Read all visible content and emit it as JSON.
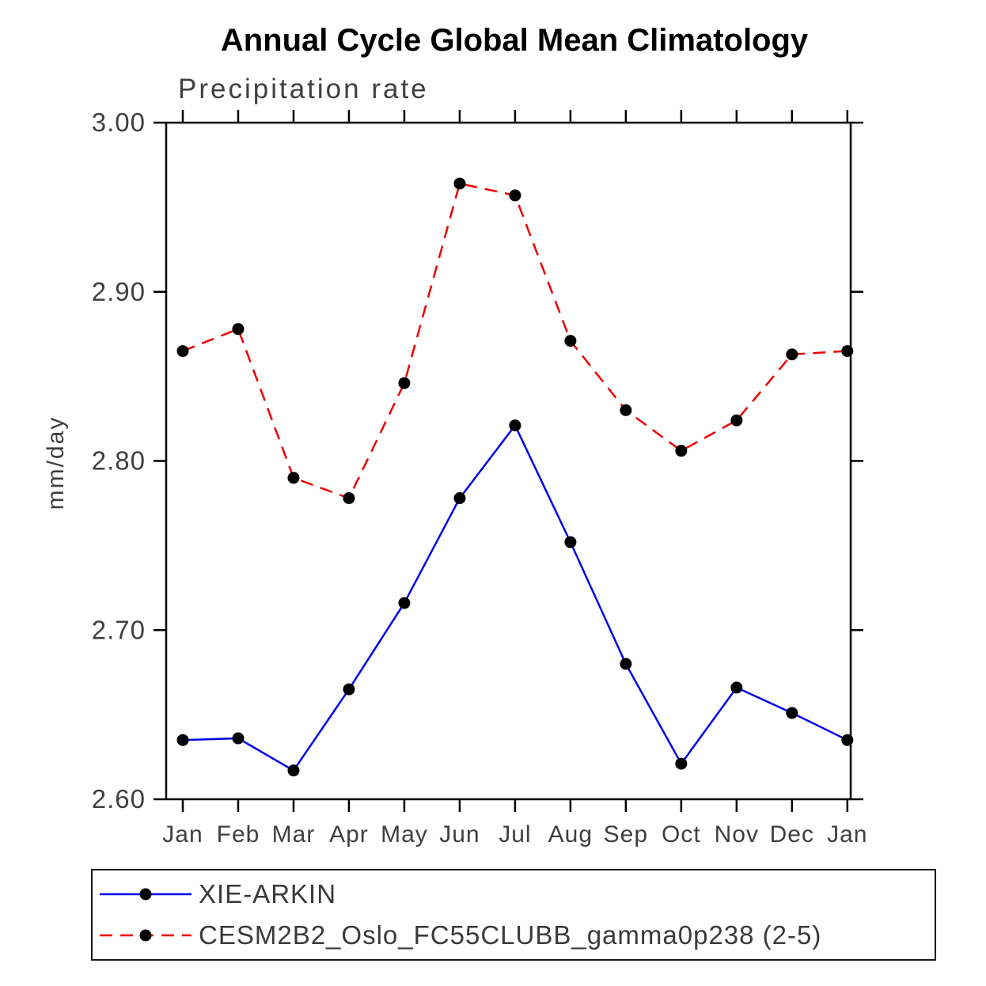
{
  "chart_data": {
    "type": "line",
    "title": "Annual Cycle Global Mean Climatology",
    "subtitle": "Precipitation rate",
    "xlabel": "",
    "ylabel": "mm/day",
    "categories": [
      "Jan",
      "Feb",
      "Mar",
      "Apr",
      "May",
      "Jun",
      "Jul",
      "Aug",
      "Sep",
      "Oct",
      "Nov",
      "Dec",
      "Jan"
    ],
    "yticks": [
      "3.00",
      "2.90",
      "2.80",
      "2.70",
      "2.60"
    ],
    "ytick_values": [
      3.0,
      2.9,
      2.8,
      2.7,
      2.6
    ],
    "ylim": [
      2.6,
      3.0
    ],
    "grid": false,
    "legend_position": "bottom",
    "marker_color": "#000000",
    "series": [
      {
        "name": "XIE-ARKIN",
        "color": "#0000ee",
        "style": "solid",
        "marker": "circle",
        "values": [
          2.635,
          2.636,
          2.617,
          2.665,
          2.716,
          2.778,
          2.821,
          2.752,
          2.68,
          2.621,
          2.666,
          2.651,
          2.635
        ]
      },
      {
        "name": "CESM2B2_Oslo_FC55CLUBB_gamma0p238 (2-5)",
        "color": "#ee0000",
        "style": "dashed",
        "marker": "circle",
        "values": [
          2.865,
          2.878,
          2.79,
          2.778,
          2.846,
          2.964,
          2.957,
          2.871,
          2.83,
          2.806,
          2.824,
          2.863,
          2.865
        ]
      }
    ]
  }
}
